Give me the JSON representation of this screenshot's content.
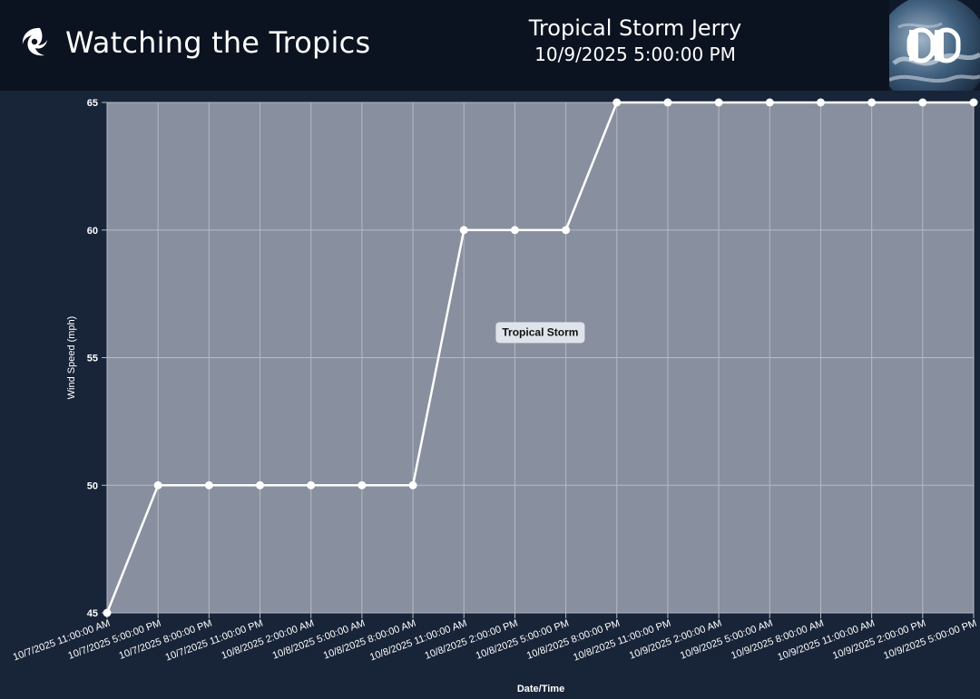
{
  "header": {
    "app_title": "Watching the Tropics",
    "brand_icon": "hurricane-icon",
    "storm_name": "Tropical Storm Jerry",
    "storm_time": "10/9/2025 5:00:00 PM",
    "logo_icon": "dd-logo-icon"
  },
  "colors": {
    "header_bg": "#0c1320",
    "page_bg": "#182438",
    "plot_bg": "#888f9e",
    "line": "#ffffff",
    "grid": "#b4bac6"
  },
  "chart_data": {
    "type": "line",
    "xlabel": "Date/Time",
    "ylabel": "Wind Speed (mph)",
    "ylim": [
      45,
      65
    ],
    "y_ticks": [
      45,
      50,
      55,
      60,
      65
    ],
    "grid": true,
    "categories": [
      "10/7/2025 11:00:00 AM",
      "10/7/2025 5:00:00 PM",
      "10/7/2025 8:00:00 PM",
      "10/7/2025 11:00:00 PM",
      "10/8/2025 2:00:00 AM",
      "10/8/2025 5:00:00 AM",
      "10/8/2025 8:00:00 AM",
      "10/8/2025 11:00:00 AM",
      "10/8/2025 2:00:00 PM",
      "10/8/2025 5:00:00 PM",
      "10/8/2025 8:00:00 PM",
      "10/8/2025 11:00:00 PM",
      "10/9/2025 2:00:00 AM",
      "10/9/2025 5:00:00 AM",
      "10/9/2025 8:00:00 AM",
      "10/9/2025 11:00:00 AM",
      "10/9/2025 2:00:00 PM",
      "10/9/2025 5:00:00 PM"
    ],
    "series": [
      {
        "values": [
          45,
          50,
          50,
          50,
          50,
          50,
          50,
          60,
          60,
          60,
          65,
          65,
          65,
          65,
          65,
          65,
          65,
          65
        ]
      }
    ],
    "annotations": [
      {
        "text": "Tropical Storm",
        "x": "10/8/2025 2:00:00 PM",
        "y": 56
      }
    ]
  }
}
